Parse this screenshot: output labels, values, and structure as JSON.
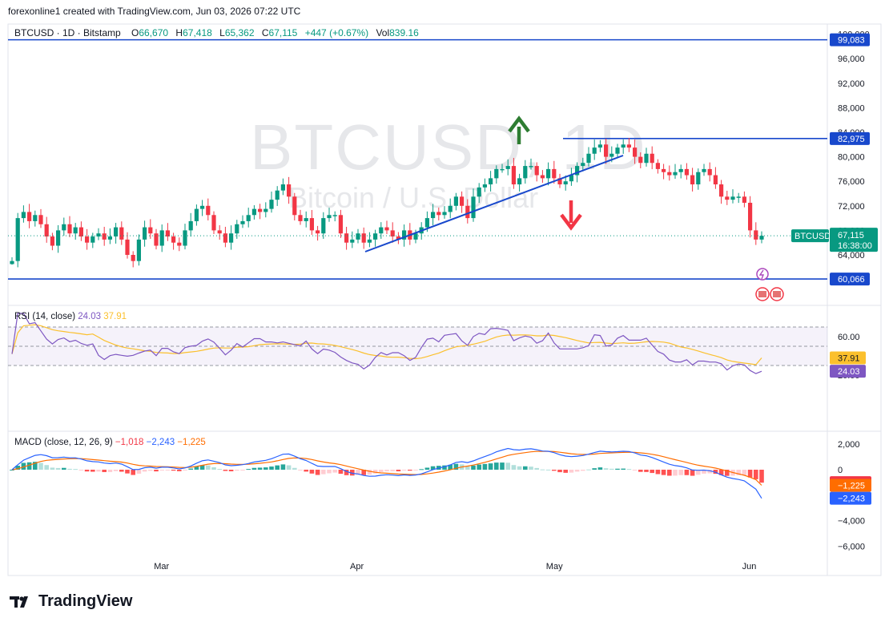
{
  "header": {
    "credit": "forexonline1 created with TradingView.com, Jun 03, 2026 07:22 UTC",
    "symbol_line": "BTCUSD · 1D · Bitstamp",
    "ohlc": [
      {
        "k": "O",
        "v": "66,670"
      },
      {
        "k": "H",
        "v": "67,418"
      },
      {
        "k": "L",
        "v": "65,362"
      },
      {
        "k": "C",
        "v": "67,115"
      },
      {
        "k": "",
        "v": "+447 (+0.67%)"
      },
      {
        "k": "Vol",
        "v": "839.16"
      }
    ]
  },
  "watermark": {
    "title": "BTCUSD, 1D",
    "subtitle": "Bitcoin / U.S. Dollar"
  },
  "rsi": {
    "label": "RSI (14, close)",
    "value": "24.03",
    "ma": "37.91"
  },
  "macd": {
    "label": "MACD (close, 12, 26, 9)",
    "hist": "−1,018",
    "macd": "−2,243",
    "signal": "−1,225"
  },
  "brand": {
    "name": "TradingView"
  },
  "colors": {
    "up": "#089981",
    "down": "#f23645",
    "level": "#1848cc",
    "rsi": "#7e57c2",
    "rsi_ma": "#fbc02d",
    "macd": "#2962ff",
    "signal": "#ff6d00"
  },
  "chart_data": [
    {
      "type": "candlestick",
      "symbol": "BTCUSD",
      "y_ticks": [
        64000,
        68000,
        72000,
        76000,
        80000,
        84000,
        88000,
        92000,
        96000,
        100000
      ],
      "x_labels": [
        "Mar",
        "Apr",
        "May",
        "Jun"
      ],
      "levels": [
        99083,
        82975,
        60066
      ],
      "level_labels": [
        "99,083",
        "82,975",
        "60,066"
      ],
      "last_price": {
        "symbol": "BTCUSD",
        "price": "67,115",
        "countdown": "16:38:00",
        "value": 67115
      },
      "trendline": {
        "from": [
          65500,
          "Apr 01"
        ],
        "to": [
          80000,
          "May 12"
        ]
      },
      "annotations": [
        "up-arrow",
        "down-arrow"
      ],
      "closes": [
        63000,
        70000,
        71000,
        69500,
        70500,
        69000,
        67000,
        65500,
        68000,
        69000,
        67500,
        68500,
        67000,
        66000,
        67000,
        67500,
        66500,
        67000,
        68500,
        66500,
        64000,
        63000,
        66500,
        68500,
        67500,
        65500,
        68000,
        67000,
        66000,
        65500,
        68000,
        69500,
        71500,
        72000,
        70500,
        68000,
        67500,
        66000,
        67500,
        69000,
        69500,
        70500,
        71500,
        71000,
        71500,
        73000,
        74500,
        75500,
        73500,
        70500,
        69500,
        70000,
        68000,
        67500,
        70000,
        70500,
        70500,
        67500,
        66000,
        66500,
        67500,
        66000,
        66500,
        67500,
        68500,
        68000,
        67000,
        66500,
        68000,
        66500,
        67500,
        68500,
        70000,
        71000,
        70500,
        71000,
        72000,
        73500,
        72000,
        70000,
        73500,
        75000,
        75500,
        76500,
        78000,
        78000,
        78500,
        75500,
        76500,
        78500,
        78500,
        77000,
        76500,
        78000,
        76500,
        75500,
        76000,
        77000,
        78500,
        79000,
        80500,
        81500,
        82000,
        80000,
        80500,
        81500,
        82000,
        81500,
        80000,
        79000,
        80500,
        79000,
        78000,
        77500,
        77000,
        77500,
        78000,
        77000,
        75500,
        77500,
        78000,
        77000,
        75500,
        73500,
        73000,
        73500,
        73500,
        72500,
        68000,
        66500,
        67115
      ],
      "rsi": {
        "ticks": [
          20,
          40,
          60
        ],
        "bands": [
          30,
          50,
          70
        ],
        "value": 24.03,
        "ma": 37.91
      },
      "macd": {
        "ticks": [
          -6000,
          -4000,
          0,
          2000
        ],
        "value": -2243,
        "signal": -1225,
        "hist": -1018
      }
    }
  ]
}
